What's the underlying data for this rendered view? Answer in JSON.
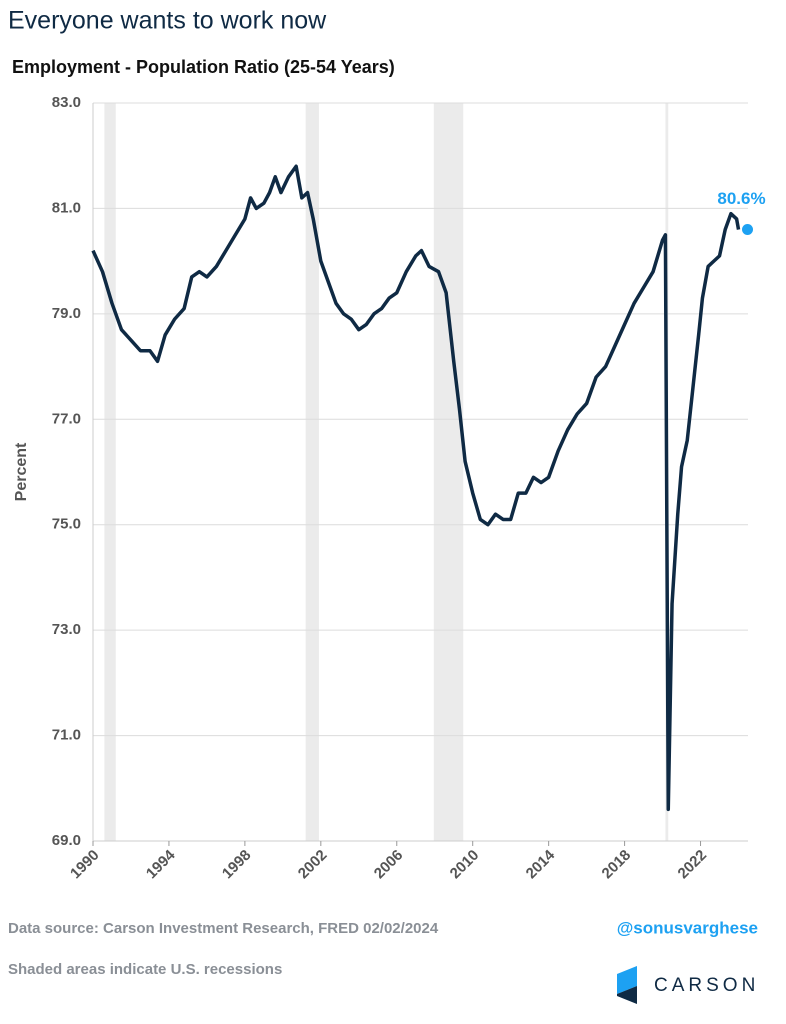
{
  "chart_data": {
    "type": "line",
    "title": "Everyone wants to work now",
    "subtitle": "Employment - Population Ratio (25-54 Years)",
    "y_label": "Percent",
    "source": "Data source: Carson Investment Research, FRED   02/02/2024",
    "note": "Shaded areas indicate U.S. recessions",
    "handle": "@sonusvarghese",
    "logo": "CARSON",
    "color": "#0f2a44",
    "grid": true,
    "xlim": [
      1990,
      2024.5
    ],
    "ylim": [
      69,
      83
    ],
    "xticks": [
      1990,
      1994,
      1998,
      2002,
      2006,
      2010,
      2014,
      2018,
      2022
    ],
    "yticks": [
      {
        "value": 69,
        "label": "69.0"
      },
      {
        "value": 71,
        "label": "71.0"
      },
      {
        "value": 73,
        "label": "73.0"
      },
      {
        "value": 75,
        "label": "75.0"
      },
      {
        "value": 77,
        "label": "77.0"
      },
      {
        "value": 79,
        "label": "79.0"
      },
      {
        "value": 81,
        "label": "81.0"
      },
      {
        "value": 83,
        "label": "83.0"
      }
    ],
    "recessions": [
      [
        1990.6,
        1991.2
      ],
      [
        2001.2,
        2001.9
      ],
      [
        2007.95,
        2009.5
      ],
      [
        2020.15,
        2020.3
      ]
    ],
    "x": [
      1990.0,
      1990.5,
      1991.0,
      1991.5,
      1992.0,
      1992.5,
      1993.0,
      1993.4,
      1993.8,
      1994.3,
      1994.8,
      1995.2,
      1995.6,
      1996.0,
      1996.5,
      1997.0,
      1997.5,
      1998.0,
      1998.3,
      1998.6,
      1999.0,
      1999.3,
      1999.6,
      1999.9,
      2000.3,
      2000.7,
      2001.0,
      2001.3,
      2001.6,
      2002.0,
      2002.4,
      2002.8,
      2003.2,
      2003.6,
      2004.0,
      2004.4,
      2004.8,
      2005.2,
      2005.6,
      2006.0,
      2006.5,
      2007.0,
      2007.3,
      2007.7,
      2008.2,
      2008.6,
      2009.0,
      2009.3,
      2009.6,
      2010.0,
      2010.4,
      2010.8,
      2011.2,
      2011.6,
      2012.0,
      2012.4,
      2012.8,
      2013.2,
      2013.6,
      2014.0,
      2014.5,
      2015.0,
      2015.5,
      2016.0,
      2016.5,
      2017.0,
      2017.5,
      2018.0,
      2018.5,
      2019.0,
      2019.5,
      2020.0,
      2020.15,
      2020.3,
      2020.5,
      2020.8,
      2021.0,
      2021.3,
      2021.6,
      2021.9,
      2022.1,
      2022.4,
      2022.7,
      2023.0,
      2023.3,
      2023.6,
      2023.9,
      2024.0
    ],
    "values": [
      80.2,
      79.8,
      79.2,
      78.7,
      78.5,
      78.3,
      78.3,
      78.1,
      78.6,
      78.9,
      79.1,
      79.7,
      79.8,
      79.7,
      79.9,
      80.2,
      80.5,
      80.8,
      81.2,
      81.0,
      81.1,
      81.3,
      81.6,
      81.3,
      81.6,
      81.8,
      81.2,
      81.3,
      80.8,
      80.0,
      79.6,
      79.2,
      79.0,
      78.9,
      78.7,
      78.8,
      79.0,
      79.1,
      79.3,
      79.4,
      79.8,
      80.1,
      80.2,
      79.9,
      79.8,
      79.4,
      78.1,
      77.2,
      76.2,
      75.6,
      75.1,
      75.0,
      75.2,
      75.1,
      75.1,
      75.6,
      75.6,
      75.9,
      75.8,
      75.9,
      76.4,
      76.8,
      77.1,
      77.3,
      77.8,
      78.0,
      78.4,
      78.8,
      79.2,
      79.5,
      79.8,
      80.4,
      80.5,
      69.6,
      73.5,
      75.2,
      76.1,
      76.6,
      77.6,
      78.6,
      79.3,
      79.9,
      80.0,
      80.1,
      80.6,
      80.9,
      80.8,
      80.6
    ],
    "annotation": {
      "text": "80.6%",
      "x": 2024.0,
      "y": 80.6,
      "color": "#1da1f2"
    }
  }
}
